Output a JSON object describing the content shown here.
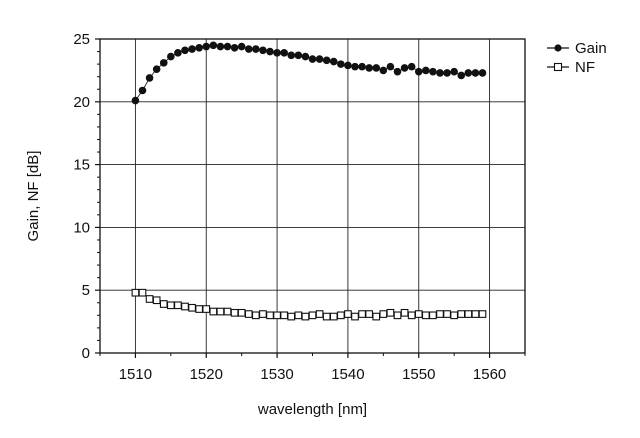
{
  "chart_data": {
    "type": "scatter",
    "title": "",
    "xlabel": "wavelength [nm]",
    "ylabel": "Gain, NF [dB]",
    "xlim": [
      1505,
      1565
    ],
    "ylim": [
      0,
      25
    ],
    "xticks": [
      1510,
      1520,
      1530,
      1540,
      1550,
      1560
    ],
    "yticks": [
      0,
      5,
      10,
      15,
      20,
      25
    ],
    "grid": true,
    "legend_position": "top-right, outside plot",
    "series": [
      {
        "name": "Gain",
        "marker": "filled-circle",
        "color": "#111111",
        "x": [
          1510,
          1511,
          1512,
          1513,
          1514,
          1515,
          1516,
          1517,
          1518,
          1519,
          1520,
          1521,
          1522,
          1523,
          1524,
          1525,
          1526,
          1527,
          1528,
          1529,
          1530,
          1531,
          1532,
          1533,
          1534,
          1535,
          1536,
          1537,
          1538,
          1539,
          1540,
          1541,
          1542,
          1543,
          1544,
          1545,
          1546,
          1547,
          1548,
          1549,
          1550,
          1551,
          1552,
          1553,
          1554,
          1555,
          1556,
          1557,
          1558,
          1559
        ],
        "y": [
          20.1,
          20.9,
          21.9,
          22.6,
          23.1,
          23.6,
          23.9,
          24.1,
          24.2,
          24.3,
          24.4,
          24.5,
          24.4,
          24.4,
          24.3,
          24.4,
          24.2,
          24.2,
          24.1,
          24.0,
          23.9,
          23.9,
          23.7,
          23.7,
          23.6,
          23.4,
          23.4,
          23.3,
          23.2,
          23.0,
          22.9,
          22.8,
          22.8,
          22.7,
          22.7,
          22.5,
          22.8,
          22.4,
          22.7,
          22.8,
          22.4,
          22.5,
          22.4,
          22.3,
          22.3,
          22.4,
          22.1,
          22.3,
          22.3,
          22.3
        ]
      },
      {
        "name": "NF",
        "marker": "open-square",
        "color": "#111111",
        "x": [
          1510,
          1511,
          1512,
          1513,
          1514,
          1515,
          1516,
          1517,
          1518,
          1519,
          1520,
          1521,
          1522,
          1523,
          1524,
          1525,
          1526,
          1527,
          1528,
          1529,
          1530,
          1531,
          1532,
          1533,
          1534,
          1535,
          1536,
          1537,
          1538,
          1539,
          1540,
          1541,
          1542,
          1543,
          1544,
          1545,
          1546,
          1547,
          1548,
          1549,
          1550,
          1551,
          1552,
          1553,
          1554,
          1555,
          1556,
          1557,
          1558,
          1559
        ],
        "y": [
          4.8,
          4.8,
          4.3,
          4.2,
          3.9,
          3.8,
          3.8,
          3.7,
          3.6,
          3.5,
          3.5,
          3.3,
          3.3,
          3.3,
          3.2,
          3.2,
          3.1,
          3.0,
          3.1,
          3.0,
          3.0,
          3.0,
          2.9,
          3.0,
          2.9,
          3.0,
          3.1,
          2.9,
          2.9,
          3.0,
          3.1,
          2.9,
          3.1,
          3.1,
          2.9,
          3.1,
          3.2,
          3.0,
          3.2,
          3.0,
          3.1,
          3.0,
          3.0,
          3.1,
          3.1,
          3.0,
          3.1,
          3.1,
          3.1,
          3.1
        ]
      }
    ]
  }
}
